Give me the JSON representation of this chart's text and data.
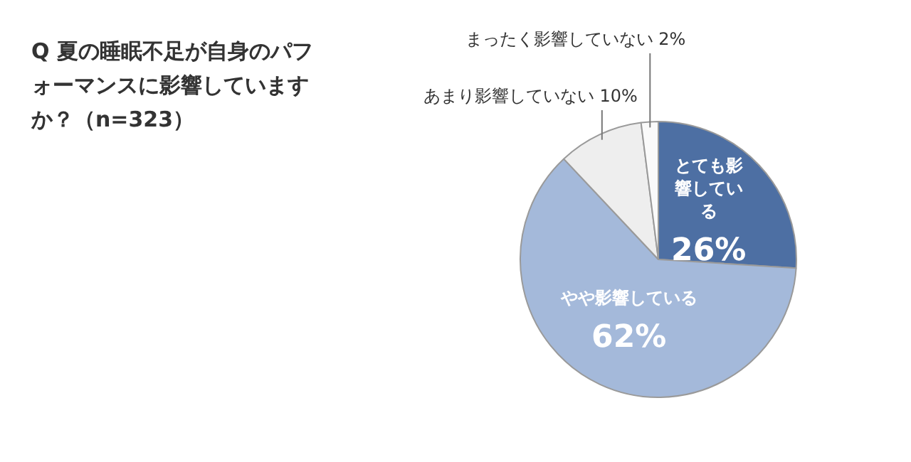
{
  "chart_data": {
    "type": "pie",
    "title": "Q 夏の睡眠不足が自身のパフォーマンスに影響していますか？（n=323）",
    "categories": [
      "とても影響している",
      "やや影響している",
      "あまり影響していない",
      "まったく影響していない"
    ],
    "values": [
      26,
      62,
      10,
      2
    ],
    "colors": [
      "#4d6fa3",
      "#a4b9da",
      "#eeeeee",
      "#fafafa"
    ],
    "value_labels": [
      "26%",
      "62%",
      "10%",
      "2%"
    ],
    "legend": false
  }
}
